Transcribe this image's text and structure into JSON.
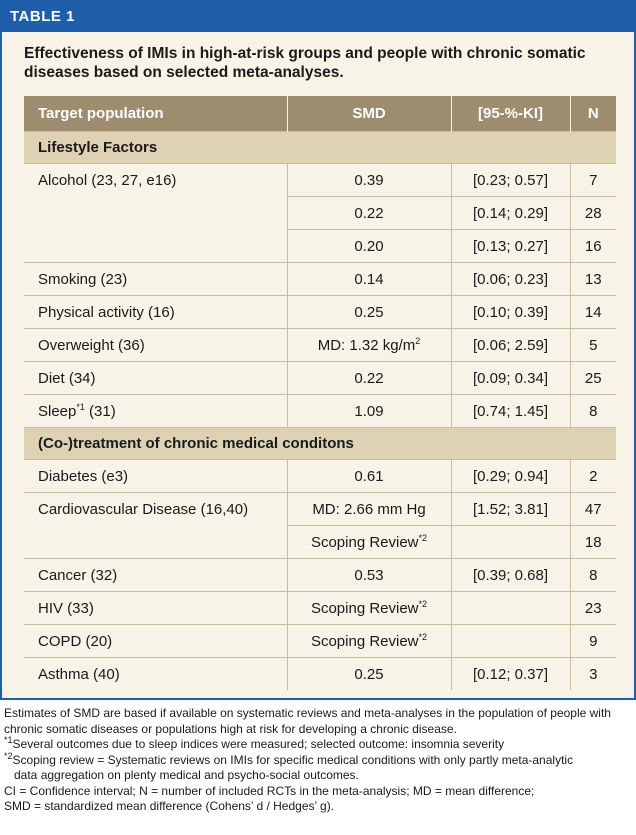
{
  "label": "TABLE 1",
  "caption": "Effectiveness of IMIs in high-at-risk groups and people with chronic somatic diseases based on selected meta-analyses.",
  "headers": [
    "Target population",
    "SMD",
    "[95-%-KI]",
    "N"
  ],
  "sections": [
    {
      "title": "Lifestyle Factors",
      "rows": [
        {
          "population": "Alcohol (23, 27, e16)",
          "smd": "0.39",
          "ci": "[0.23; 0.57]",
          "n": "7"
        },
        {
          "population": "",
          "smd": "0.22",
          "ci": "[0.14; 0.29]",
          "n": "28"
        },
        {
          "population": "",
          "smd": "0.20",
          "ci": "[0.13; 0.27]",
          "n": "16"
        },
        {
          "population": "Smoking (23)",
          "smd": "0.14",
          "ci": "[0.06; 0.23]",
          "n": "13"
        },
        {
          "population": "Physical activity (16)",
          "smd": "0.25",
          "ci": "[0.10; 0.39]",
          "n": "14"
        },
        {
          "population": "Overweight (36)",
          "smd": "MD: 1.32 kg/m",
          "smd_sup": "2",
          "ci": "[0.06; 2.59]",
          "n": "5"
        },
        {
          "population": "Diet (34)",
          "smd": "0.22",
          "ci": "[0.09; 0.34]",
          "n": "25"
        },
        {
          "population": "Sleep",
          "population_sup": "*1",
          "population_tail": " (31)",
          "smd": "1.09",
          "ci": "[0.74; 1.45]",
          "n": "8"
        }
      ]
    },
    {
      "title": "(Co-)treatment of chronic medical conditons",
      "rows": [
        {
          "population": "Diabetes (e3)",
          "smd": "0.61",
          "ci": "[0.29; 0.94]",
          "n": "2"
        },
        {
          "population": "Cardiovascular Disease (16,40)",
          "smd": "MD: 2.66 mm Hg",
          "ci": "[1.52; 3.81]",
          "n": "47"
        },
        {
          "population": "",
          "smd": "Scoping Review",
          "smd_sup": "*2",
          "ci": "",
          "n": "18"
        },
        {
          "population": "Cancer (32)",
          "smd": "0.53",
          "ci": "[0.39; 0.68]",
          "n": "8"
        },
        {
          "population": "HIV (33)",
          "smd": "Scoping Review",
          "smd_sup": "*2",
          "ci": "",
          "n": "23"
        },
        {
          "population": "COPD (20)",
          "smd": "Scoping Review",
          "smd_sup": "*2",
          "ci": "",
          "n": "9"
        },
        {
          "population": "Asthma (40)",
          "smd": "0.25",
          "ci": "[0.12; 0.37]",
          "n": "3"
        }
      ]
    }
  ],
  "notes": {
    "intro": "Estimates of SMD are based if available on systematic reviews and meta-analyses in the population of people with chronic somatic diseases or populations high at risk for developing a chronic disease.",
    "fn1_mark": "*1",
    "fn1_text": "Several outcomes due to sleep indices were measured; selected outcome: insomnia severity",
    "fn2_mark": "*2",
    "fn2_text_a": "Scoping review = Systematic reviews on IMIs for specific medical conditions with only partly meta-analytic",
    "fn2_text_b": "data aggregation on plenty medical and psycho-social outcomes.",
    "abbrev_a": "CI = Confidence interval; N = number of included RCTs in the meta-analysis; MD = mean difference;",
    "abbrev_b": "SMD = standardized mean difference (Cohens’ d / Hedges’ g)."
  },
  "colors": {
    "accent_blue": "#1f5ea8",
    "header_brown": "#9e8c6f",
    "section_tan": "#ddd2b4",
    "panel_bg": "#f7f3e6"
  }
}
